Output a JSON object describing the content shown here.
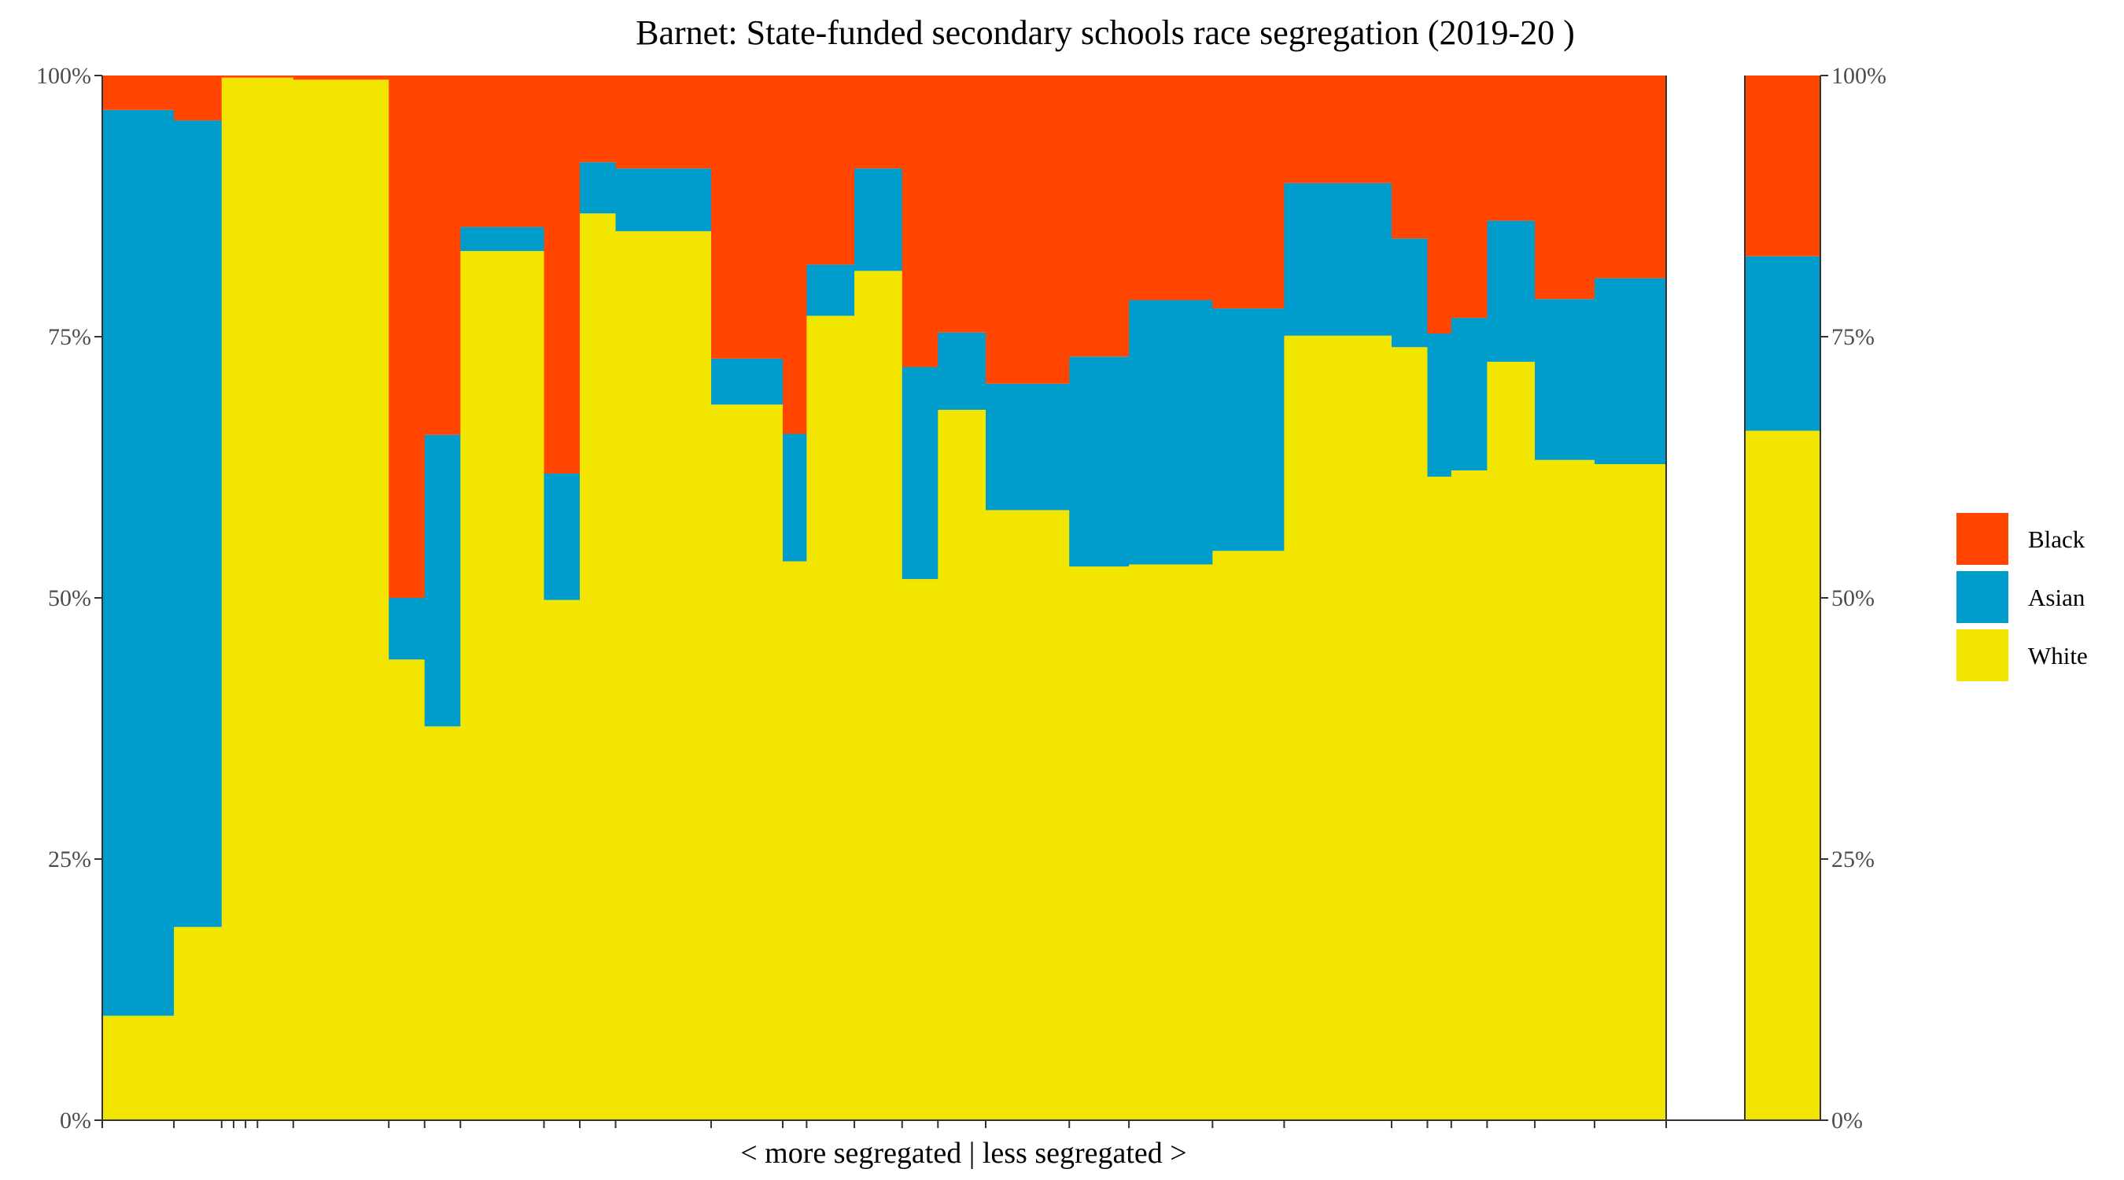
{
  "chart_data": {
    "type": "bar",
    "title": "Barnet: State-funded secondary schools race segregation (2019-20 )",
    "xlabel": "< more segregated | less segregated >",
    "ylabel": "",
    "ylim": [
      0,
      100
    ],
    "y_ticks": [
      "0%",
      "25%",
      "50%",
      "75%",
      "100%"
    ],
    "stacked": true,
    "variable_width": true,
    "legend_position": "right",
    "legend": [
      {
        "name": "Black",
        "color": "#ff4500"
      },
      {
        "name": "Asian",
        "color": "#009ccc"
      },
      {
        "name": "White",
        "color": "#f2e500"
      }
    ],
    "schools": [
      {
        "w": 6,
        "white": 10.0,
        "asian": 86.7,
        "black": 3.3
      },
      {
        "w": 4,
        "white": 18.5,
        "asian": 77.2,
        "black": 4.3
      },
      {
        "w": 1,
        "white": 99.8,
        "asian": 0.0,
        "black": 0.2
      },
      {
        "w": 1,
        "white": 99.8,
        "asian": 0.0,
        "black": 0.2
      },
      {
        "w": 1,
        "white": 99.8,
        "asian": 0.0,
        "black": 0.2
      },
      {
        "w": 3,
        "white": 99.8,
        "asian": 0.0,
        "black": 0.2
      },
      {
        "w": 8,
        "white": 99.6,
        "asian": 0.0,
        "black": 0.4
      },
      {
        "w": 3,
        "white": 44.1,
        "asian": 5.9,
        "black": 50.0
      },
      {
        "w": 3,
        "white": 37.7,
        "asian": 27.9,
        "black": 34.4
      },
      {
        "w": 7,
        "white": 83.2,
        "asian": 2.3,
        "black": 14.5
      },
      {
        "w": 3,
        "white": 49.8,
        "asian": 12.1,
        "black": 38.1
      },
      {
        "w": 3,
        "white": 86.8,
        "asian": 4.9,
        "black": 8.3
      },
      {
        "w": 8,
        "white": 85.1,
        "asian": 6.0,
        "black": 8.9
      },
      {
        "w": 6,
        "white": 68.5,
        "asian": 4.4,
        "black": 27.1
      },
      {
        "w": 2,
        "white": 53.5,
        "asian": 12.2,
        "black": 34.3
      },
      {
        "w": 4,
        "white": 77.0,
        "asian": 4.9,
        "black": 18.1
      },
      {
        "w": 4,
        "white": 81.3,
        "asian": 9.8,
        "black": 8.9
      },
      {
        "w": 3,
        "white": 51.8,
        "asian": 20.3,
        "black": 27.9
      },
      {
        "w": 4,
        "white": 68.0,
        "asian": 7.4,
        "black": 24.6
      },
      {
        "w": 7,
        "white": 58.4,
        "asian": 12.1,
        "black": 29.5
      },
      {
        "w": 5,
        "white": 53.0,
        "asian": 20.1,
        "black": 26.9
      },
      {
        "w": 7,
        "white": 53.2,
        "asian": 25.3,
        "black": 21.5
      },
      {
        "w": 6,
        "white": 54.5,
        "asian": 23.2,
        "black": 22.3
      },
      {
        "w": 9,
        "white": 75.1,
        "asian": 14.6,
        "black": 10.3
      },
      {
        "w": 3,
        "white": 74.0,
        "asian": 10.4,
        "black": 15.6
      },
      {
        "w": 2,
        "white": 61.6,
        "asian": 13.7,
        "black": 24.7
      },
      {
        "w": 3,
        "white": 62.2,
        "asian": 14.6,
        "black": 23.2
      },
      {
        "w": 4,
        "white": 72.6,
        "asian": 13.5,
        "black": 13.9
      },
      {
        "w": 5,
        "white": 63.2,
        "asian": 15.4,
        "black": 21.4
      },
      {
        "w": 6,
        "white": 62.8,
        "asian": 17.8,
        "black": 19.4
      }
    ],
    "overall": {
      "white": 66.0,
      "asian": 16.7,
      "black": 17.3
    }
  }
}
